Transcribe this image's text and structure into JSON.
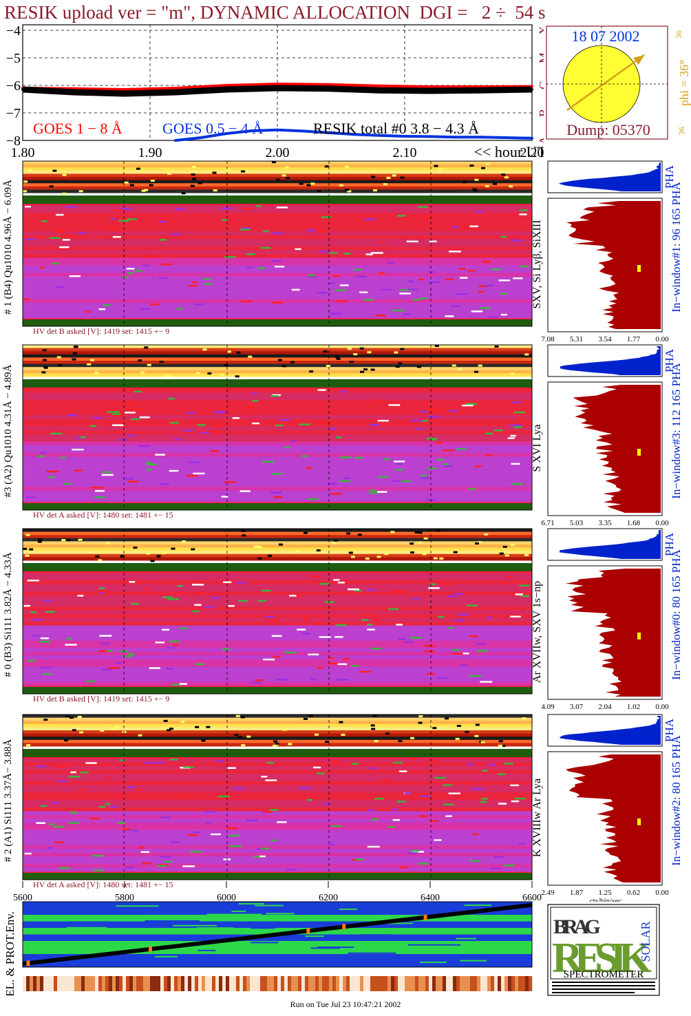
{
  "header": {
    "title": "RESIK upload ver = \"m\", DYNAMIC ALLOCATION  DGI =   2 ÷  54 s"
  },
  "colors": {
    "goes_long": "#ff0000",
    "goes_short": "#0033dd",
    "resik": "#000000",
    "title": "#8b1a2a",
    "sun": "#ffff33",
    "arrow": "#d4a017",
    "pha_small": "#0022cc",
    "pha_large": "#aa0000"
  },
  "sun_panel": {
    "date": "18 07 2002",
    "dump": "Dump: 05370",
    "phi_label": "phi = 36°",
    "phi_small_top": "36",
    "phi_small_bottom": "36"
  },
  "goes_panel": {
    "legend_goes_long": "GOES 1 − 8 Å",
    "legend_goes_short": "GOES 0.5 − 4 Å",
    "legend_resik": "RESIK total #0  3.8 − 4.3 Å",
    "class_letters": [
      "A",
      "B",
      "C",
      "M",
      "X"
    ],
    "x_unit_label": "<< hour UT"
  },
  "chart_data": [
    {
      "type": "line",
      "title": "",
      "xlabel": "<< hour UT",
      "ylabel": "",
      "xlim": [
        1.8,
        2.2
      ],
      "ylim": [
        -8,
        -3.8
      ],
      "xticks": [
        "1.80",
        "1.90",
        "2.00",
        "2.10",
        "2.20"
      ],
      "yticks": [
        "−4",
        "−5",
        "−6",
        "−7",
        "−8"
      ],
      "grid": true,
      "series": [
        {
          "name": "GOES 1 − 8 Å",
          "color": "#ff0000",
          "x": [
            1.8,
            1.84,
            1.88,
            1.92,
            1.96,
            2.0,
            2.04,
            2.08,
            2.12,
            2.16,
            2.2
          ],
          "y": [
            -6.1,
            -6.12,
            -6.15,
            -6.1,
            -6.0,
            -5.95,
            -5.97,
            -6.02,
            -6.05,
            -6.05,
            -6.04
          ]
        },
        {
          "name": "GOES 0.5 − 4 Å",
          "color": "#0033dd",
          "x": [
            1.92,
            1.94,
            1.96,
            1.98,
            2.0,
            2.02,
            2.04,
            2.06,
            2.08,
            2.1,
            2.12,
            2.14,
            2.16,
            2.18,
            2.2
          ],
          "y": [
            -8.0,
            -7.9,
            -7.75,
            -7.65,
            -7.62,
            -7.66,
            -7.72,
            -7.78,
            -7.82,
            -7.85,
            -7.86,
            -7.88,
            -7.88,
            -7.9,
            -7.92
          ]
        },
        {
          "name": "RESIK total #0  3.8 − 4.3 Å",
          "color": "#000000",
          "x": [
            1.8,
            1.84,
            1.88,
            1.92,
            1.96,
            2.0,
            2.04,
            2.08,
            2.12,
            2.16,
            2.2
          ],
          "y": [
            -6.15,
            -6.25,
            -6.3,
            -6.25,
            -6.15,
            -6.1,
            -6.12,
            -6.18,
            -6.2,
            -6.18,
            -6.15
          ]
        }
      ]
    },
    {
      "type": "heatmap",
      "title": "",
      "xlabel": "",
      "ylabel": "",
      "channels": [
        {
          "left_label": "# 1 (B4) Qu1010 4.96Å − 6.09Å",
          "line_label": "SXV, Si Lyβ, SiXIII",
          "window_label": "In−window#1:   96 165 PHA",
          "hv_label": "HV det B asked [V]:  1419 set:  1415 +−    9",
          "pha_ticks": [
            "7.08",
            "5.31",
            "3.54",
            "1.77",
            "0.00"
          ]
        },
        {
          "left_label": "#3 (A2) Qu1010  4.31Å − 4.89Å",
          "line_label": "S XVI Lya",
          "window_label": "In−window#3:  112 165 PHA",
          "hv_label": "HV det A asked [V]:  1480 set:  1481 +−    15",
          "pha_ticks": [
            "6.71",
            "5.03",
            "3.35",
            "1.68",
            "0.00"
          ]
        },
        {
          "left_label": "# 0 (B3) Si111  3.82Å − 4.33Å",
          "line_label": "Ar XVIIw,  SXV 1s−np",
          "window_label": "In−window#0:   80 165 PHA",
          "hv_label": "HV det B asked [V]:  1419 set:  1415 +−    9",
          "pha_ticks": [
            "4.09",
            "3.07",
            "2.04",
            "1.02",
            "0.00"
          ]
        },
        {
          "left_label": "# 2 (A1) Si111  3.37Å− 3.88Å",
          "line_label": "K XVIIIw  Ar Lya",
          "window_label": "In−window#2:   80 165 PHA",
          "hv_label": "HV det A asked [V]:  1480 set:  1481 +−    15",
          "pha_ticks": [
            "2.49",
            "1.87",
            "1.25",
            "0.62",
            "0.00"
          ]
        }
      ]
    },
    {
      "type": "line",
      "title": "",
      "xlabel": "",
      "ylabel": "EL. & PROT.Env.",
      "xlim": [
        5600,
        6600
      ],
      "xticks": [
        "5600",
        "5800",
        "6000",
        "6200",
        "6400",
        "6600"
      ],
      "series": [
        {
          "name": "",
          "color": "#000000",
          "x": [
            5600,
            6600
          ],
          "y": [
            0.05,
            0.95
          ]
        }
      ]
    }
  ],
  "pha_unit": "cts/bin/sec",
  "logo": {
    "letters_top": "BRAG",
    "letters_main": "RESIK",
    "letters_side": "SOLAR",
    "caption": "SPECTROMETER"
  },
  "footer": {
    "run_text": "Run on Tue Jul 23 10:47:21 2002"
  }
}
